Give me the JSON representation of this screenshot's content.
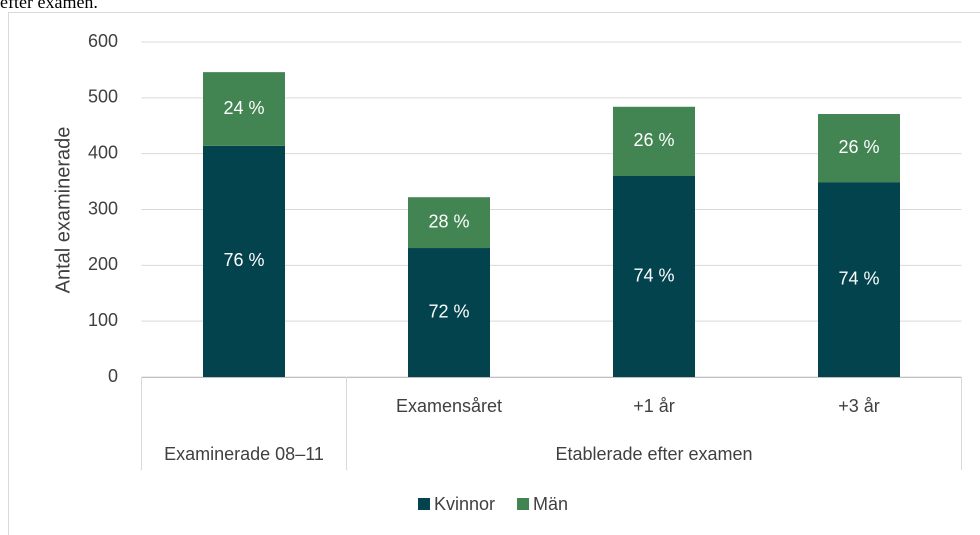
{
  "caption_fragment": "efter examen.",
  "chart_data": {
    "type": "stacked_bar",
    "y_label": "Antal examinerade",
    "category_groups": [
      {
        "label": "Examinerade 08–11",
        "categories": [
          null
        ]
      },
      {
        "label": "Etablerade efter examen",
        "categories": [
          "Examensåret",
          "+1 år",
          "+3 år"
        ]
      }
    ],
    "series": [
      {
        "name": "Kvinnor",
        "color": "#03434e",
        "values": [
          414,
          231,
          360,
          349
        ],
        "percent_labels": [
          "76 %",
          "72 %",
          "74 %",
          "74 %"
        ]
      },
      {
        "name": "Män",
        "color": "#428452",
        "values": [
          132,
          91,
          124,
          122
        ],
        "percent_labels": [
          "24 %",
          "28 %",
          "26 %",
          "26 %"
        ]
      }
    ],
    "ylim": [
      0,
      600
    ],
    "yticks": [
      0,
      100,
      200,
      300,
      400,
      500,
      600
    ],
    "grid": true,
    "legend": "bottom"
  }
}
